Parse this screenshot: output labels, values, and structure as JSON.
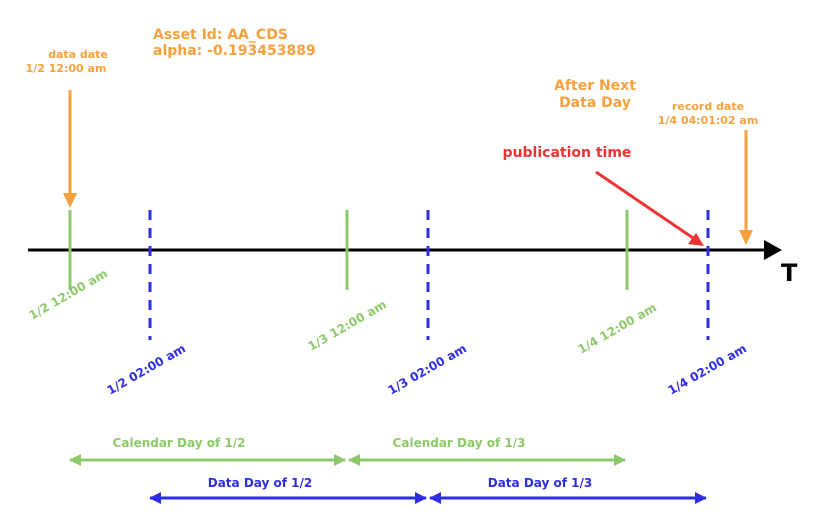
{
  "header": {
    "asset_id": "Asset Id: AA_CDS",
    "alpha": "alpha: -0.193453889"
  },
  "annotations": {
    "data_date_label": "data date",
    "data_date_value": "1/2 12:00 am",
    "after_next_line1": "After Next",
    "after_next_line2": "Data Day",
    "record_date_label": "record date",
    "record_date_value": "1/4 04:01:02 am",
    "publication_time": "publication time"
  },
  "axis": {
    "label": "T"
  },
  "ticks": {
    "calendar": [
      "1/2 12:00 am",
      "1/3 12:00 am",
      "1/4 12:00 am"
    ],
    "data_day": [
      "1/2 02:00 am",
      "1/3 02:00 am",
      "1/4 02:00 am"
    ]
  },
  "spans": {
    "calendar": [
      "Calendar Day of 1/2",
      "Calendar Day of 1/3"
    ],
    "data_day": [
      "Data Day of 1/2",
      "Data Day of 1/3"
    ]
  },
  "colors": {
    "orange": "#f7a13e",
    "green": "#8dc96b",
    "blue": "#2e2ee6",
    "red": "#ee3333",
    "black": "#000000"
  }
}
